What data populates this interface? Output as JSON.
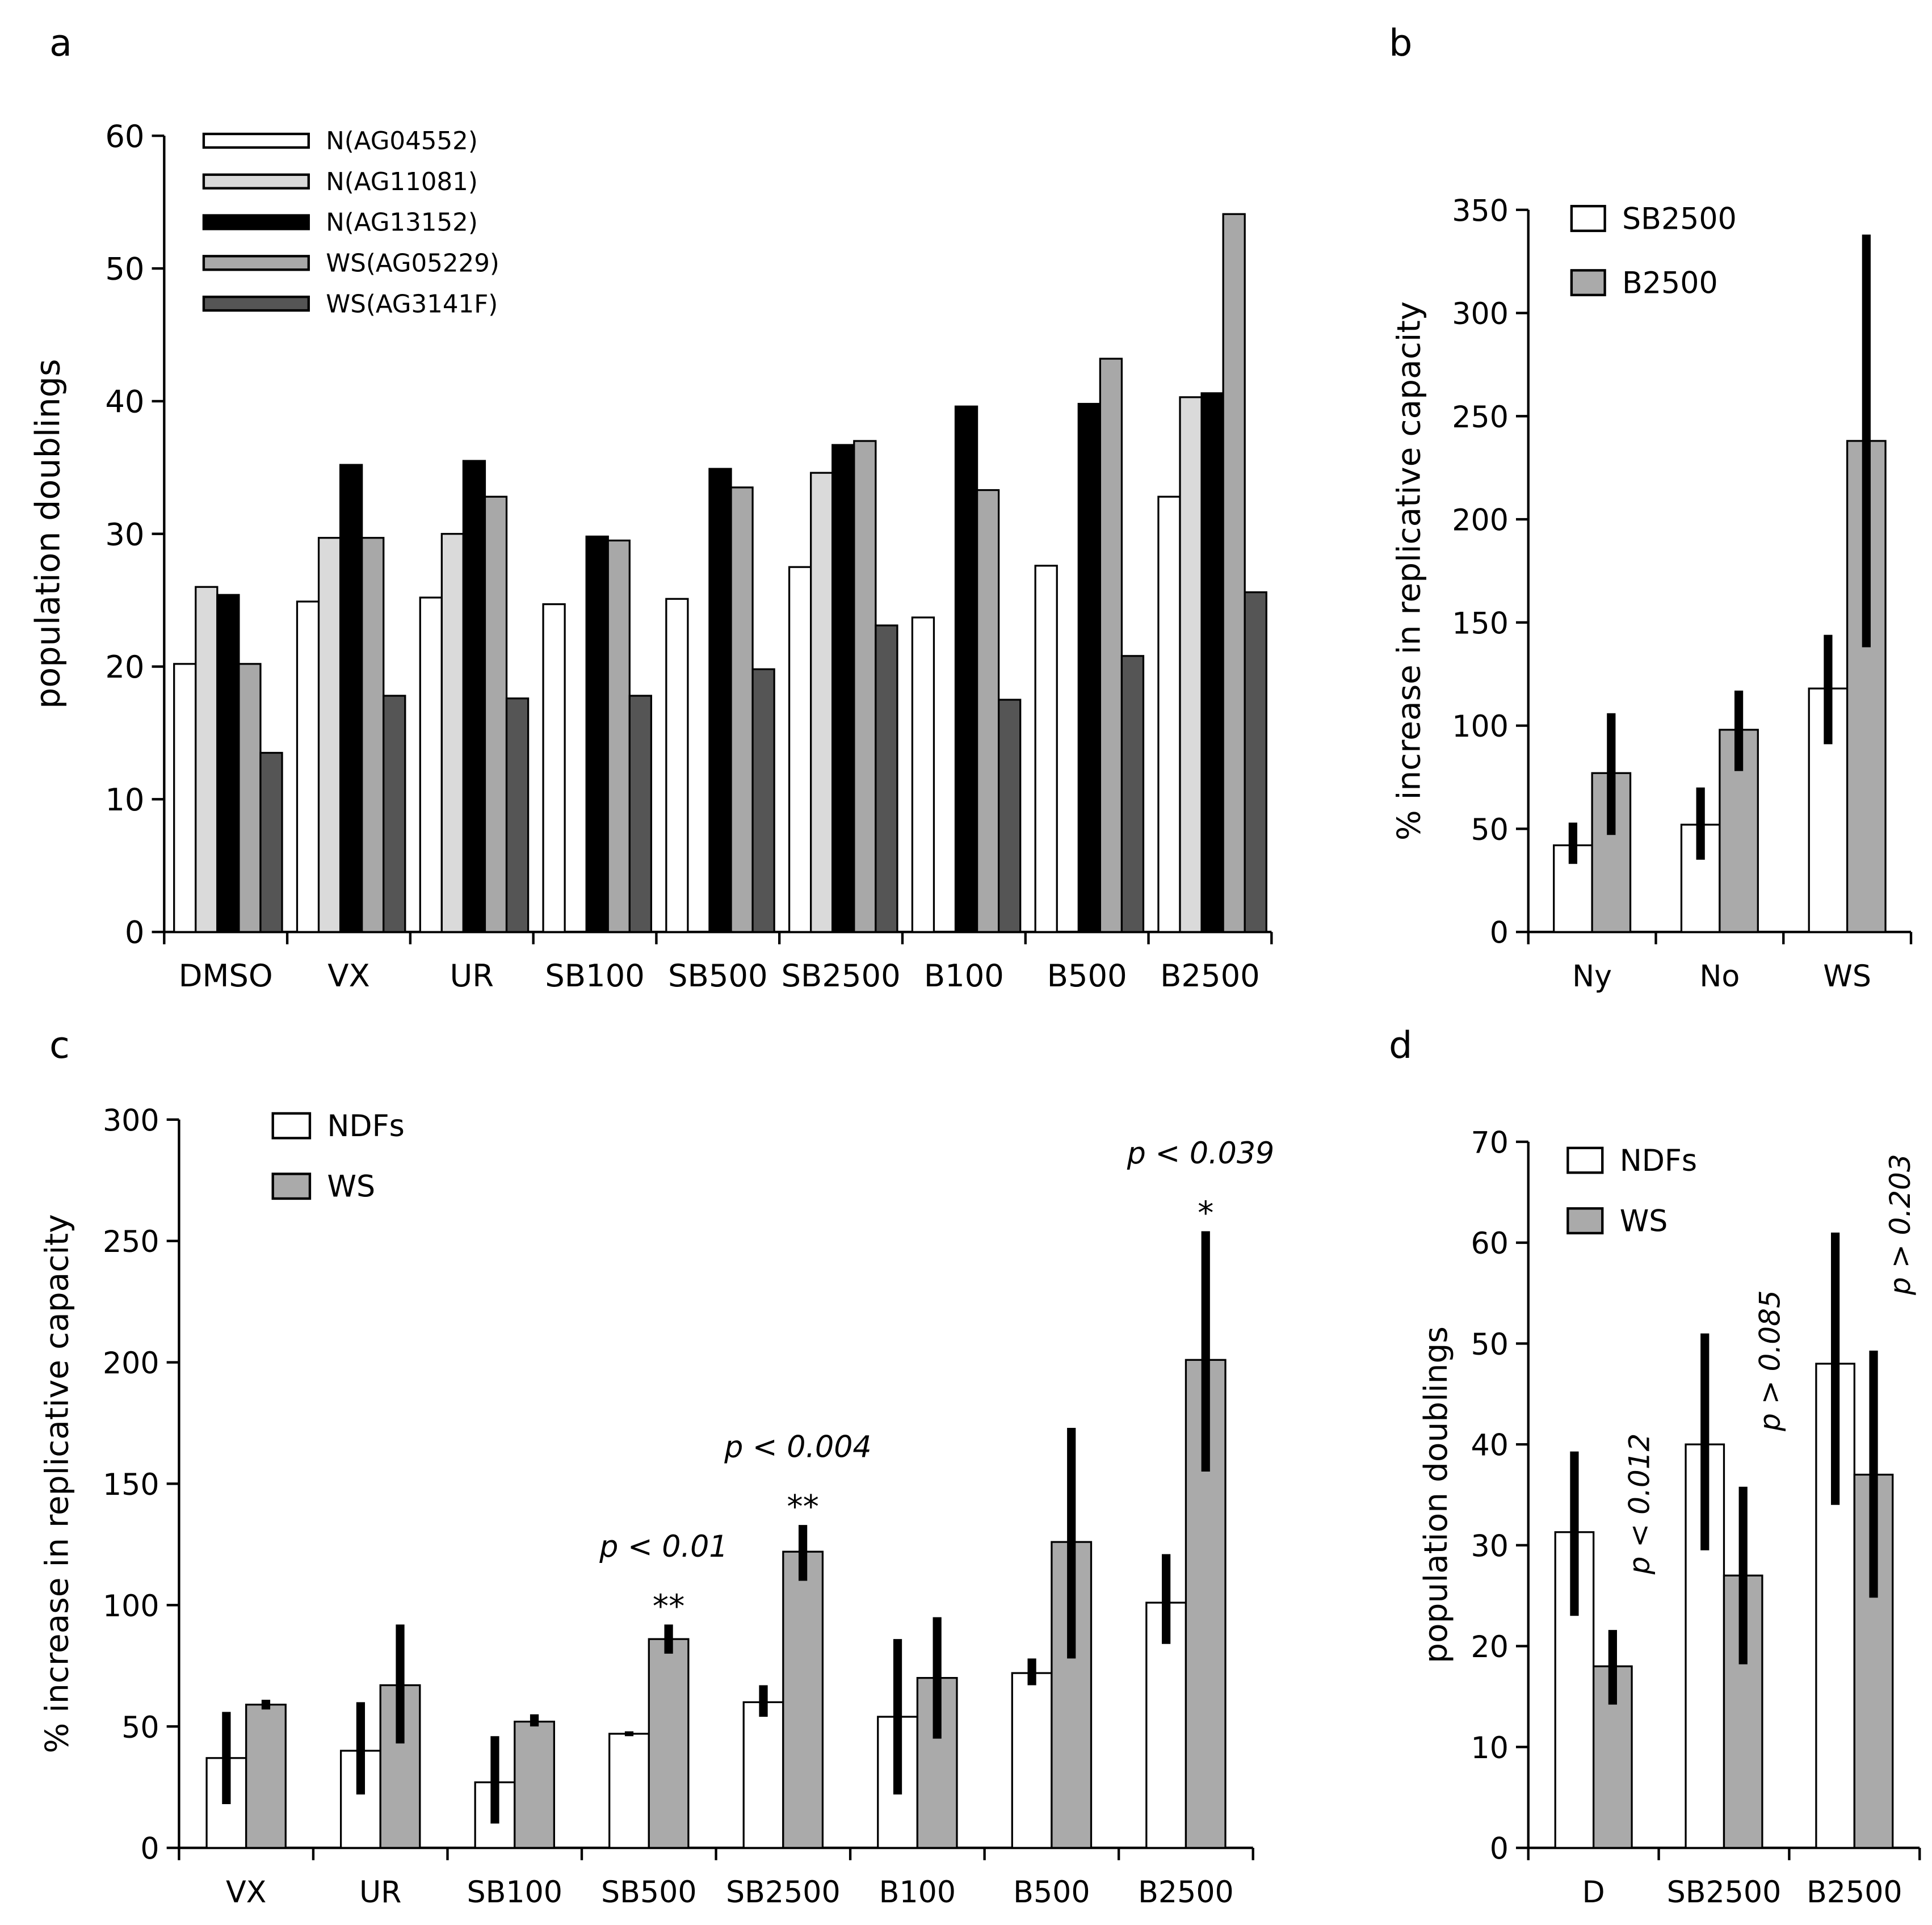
{
  "chart_data": [
    {
      "panel": "a",
      "type": "bar",
      "ylabel": "population doublings",
      "ylim": [
        0,
        60
      ],
      "yticks": [
        0,
        10,
        20,
        30,
        40,
        50,
        60
      ],
      "categories": [
        "DMSO",
        "VX",
        "UR",
        "SB100",
        "SB500",
        "SB2500",
        "B100",
        "B500",
        "B2500"
      ],
      "legend_position": "top-left",
      "series": [
        {
          "name": "N(AG04552)",
          "color": "#ffffff",
          "values": [
            20.2,
            24.9,
            25.2,
            24.7,
            25.1,
            27.5,
            23.7,
            27.6,
            32.8
          ]
        },
        {
          "name": "N(AG11081)",
          "color": "#dadada",
          "values": [
            26.0,
            29.7,
            30.0,
            null,
            null,
            34.6,
            null,
            null,
            40.3
          ]
        },
        {
          "name": "N(AG13152)",
          "color": "#000000",
          "values": [
            25.4,
            35.2,
            35.5,
            29.8,
            34.9,
            36.7,
            39.6,
            39.8,
            40.6
          ]
        },
        {
          "name": "WS(AG05229)",
          "color": "#a8a8a8",
          "values": [
            20.2,
            29.7,
            32.8,
            29.5,
            33.5,
            37.0,
            33.3,
            43.2,
            54.1
          ]
        },
        {
          "name": "WS(AG3141F)",
          "color": "#555555",
          "values": [
            13.5,
            17.8,
            17.6,
            17.8,
            19.8,
            23.1,
            17.5,
            20.8,
            25.6
          ]
        }
      ]
    },
    {
      "panel": "b",
      "type": "bar",
      "ylabel": "% increase in replicative capacity",
      "ylim": [
        0,
        350
      ],
      "yticks": [
        0,
        50,
        100,
        150,
        200,
        250,
        300,
        350
      ],
      "categories": [
        "Ny",
        "No",
        "WS"
      ],
      "legend_position": "top-left",
      "series": [
        {
          "name": "SB2500",
          "color": "#ffffff",
          "values": [
            42,
            52,
            118
          ],
          "err_low": [
            33,
            35,
            91
          ],
          "err_high": [
            53,
            70,
            144
          ]
        },
        {
          "name": "B2500",
          "color": "#aaaaaa",
          "values": [
            77,
            98,
            238
          ],
          "err_low": [
            47,
            78,
            138
          ],
          "err_high": [
            106,
            117,
            338
          ]
        }
      ]
    },
    {
      "panel": "c",
      "type": "bar",
      "ylabel": "% increase in replicative capacity",
      "ylim": [
        0,
        300
      ],
      "yticks": [
        0,
        50,
        100,
        150,
        200,
        250,
        300
      ],
      "categories": [
        "VX",
        "UR",
        "SB100",
        "SB500",
        "SB2500",
        "B100",
        "B500",
        "B2500"
      ],
      "legend_position": "top-left",
      "series": [
        {
          "name": "NDFs",
          "color": "#ffffff",
          "values": [
            37,
            40,
            27,
            47,
            60,
            54,
            72,
            101
          ],
          "err_low": [
            18,
            22,
            10,
            46,
            54,
            22,
            67,
            84
          ],
          "err_high": [
            56,
            60,
            46,
            48,
            67,
            86,
            78,
            121
          ]
        },
        {
          "name": "WS",
          "color": "#aaaaaa",
          "values": [
            59,
            67,
            52,
            86,
            122,
            70,
            126,
            201
          ],
          "err_low": [
            57,
            43,
            50,
            80,
            110,
            45,
            78,
            155
          ],
          "err_high": [
            61,
            92,
            55,
            92,
            133,
            95,
            173,
            254
          ]
        }
      ],
      "annotations": [
        {
          "category": "SB500",
          "p_text": "p < 0.01",
          "stars": "**"
        },
        {
          "category": "SB2500",
          "p_text": "p < 0.004",
          "stars": "**"
        },
        {
          "category": "B2500",
          "p_text": "p < 0.039",
          "stars": "*"
        }
      ]
    },
    {
      "panel": "d",
      "type": "bar",
      "ylabel": "population doublings",
      "ylim": [
        0,
        70
      ],
      "yticks": [
        0,
        10,
        20,
        30,
        40,
        50,
        60,
        70
      ],
      "categories": [
        "D",
        "SB2500",
        "B2500"
      ],
      "legend_position": "top-left",
      "series": [
        {
          "name": "NDFs",
          "color": "#ffffff",
          "values": [
            31.3,
            40.0,
            48.0
          ],
          "err_low": [
            23,
            29.5,
            34
          ],
          "err_high": [
            39.3,
            51,
            61
          ]
        },
        {
          "name": "WS",
          "color": "#aaaaaa",
          "values": [
            18.0,
            27.0,
            37.0
          ],
          "err_low": [
            14.2,
            18.2,
            24.8
          ],
          "err_high": [
            21.6,
            35.8,
            49.3
          ]
        }
      ],
      "annotations": [
        {
          "category": "D",
          "p_text": "p < 0.012"
        },
        {
          "category": "SB2500",
          "p_text": "p > 0.085"
        },
        {
          "category": "B2500",
          "p_text": "p > 0.203"
        }
      ]
    }
  ]
}
